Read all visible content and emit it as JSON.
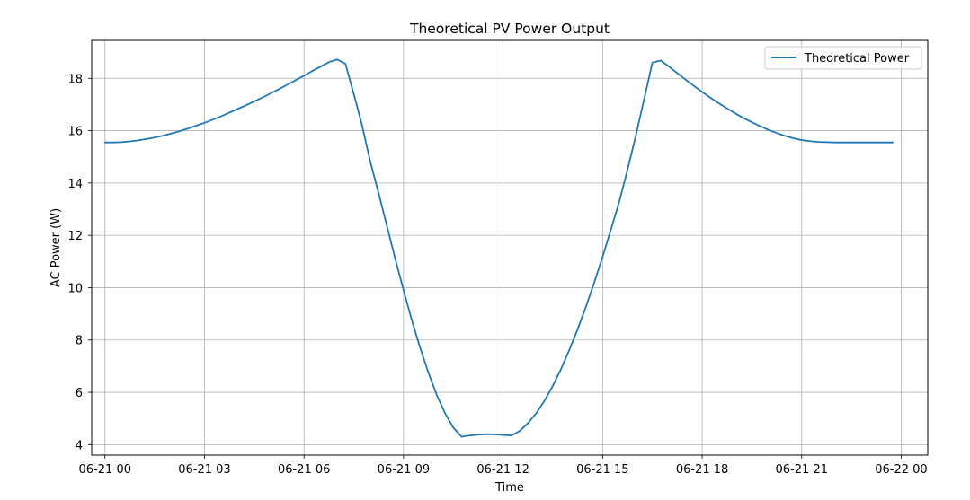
{
  "chart_data": {
    "type": "line",
    "title": "Theoretical PV Power Output",
    "xlabel": "Time",
    "ylabel": "AC Power (W)",
    "xlim_hours": [
      -0.4,
      24.8
    ],
    "ylim": [
      3.6,
      19.45
    ],
    "xticks": [
      {
        "hour": 0,
        "label": "06-21 00"
      },
      {
        "hour": 3,
        "label": "06-21 03"
      },
      {
        "hour": 6,
        "label": "06-21 06"
      },
      {
        "hour": 9,
        "label": "06-21 09"
      },
      {
        "hour": 12,
        "label": "06-21 12"
      },
      {
        "hour": 15,
        "label": "06-21 15"
      },
      {
        "hour": 18,
        "label": "06-21 18"
      },
      {
        "hour": 21,
        "label": "06-21 21"
      },
      {
        "hour": 24,
        "label": "06-22 00"
      }
    ],
    "yticks": [
      4,
      6,
      8,
      10,
      12,
      14,
      16,
      18
    ],
    "grid": true,
    "legend": {
      "position": "top-right",
      "entries": [
        "Theoretical Power"
      ]
    },
    "series": [
      {
        "name": "Theoretical Power",
        "color": "#1f77b4",
        "x_hours": [
          0,
          0.25,
          0.5,
          0.75,
          1,
          1.25,
          1.5,
          1.75,
          2,
          2.25,
          2.5,
          2.75,
          3,
          3.25,
          3.5,
          3.75,
          4,
          4.25,
          4.5,
          4.75,
          5,
          5.25,
          5.5,
          5.75,
          6,
          6.25,
          6.5,
          6.75,
          7,
          7.25,
          7.5,
          7.75,
          8,
          8.25,
          8.5,
          8.75,
          9,
          9.25,
          9.5,
          9.75,
          10,
          10.25,
          10.5,
          10.75,
          11,
          11.25,
          11.5,
          11.75,
          12,
          12.25,
          12.5,
          12.75,
          13,
          13.25,
          13.5,
          13.75,
          14,
          14.25,
          14.5,
          14.75,
          15,
          15.25,
          15.5,
          15.75,
          16,
          16.25,
          16.5,
          16.75,
          17,
          17.25,
          17.5,
          17.75,
          18,
          18.25,
          18.5,
          18.75,
          19,
          19.25,
          19.5,
          19.75,
          20,
          20.25,
          20.5,
          20.75,
          21,
          21.25,
          21.5,
          21.75,
          22,
          22.25,
          22.5,
          22.75,
          23,
          23.25,
          23.5,
          23.75
        ],
        "values": [
          15.55,
          15.55,
          15.56,
          15.59,
          15.63,
          15.68,
          15.74,
          15.81,
          15.89,
          15.98,
          16.08,
          16.19,
          16.3,
          16.42,
          16.55,
          16.69,
          16.83,
          16.97,
          17.12,
          17.27,
          17.43,
          17.59,
          17.76,
          17.93,
          18.1,
          18.28,
          18.45,
          18.62,
          18.72,
          18.55,
          17.4,
          16.2,
          14.8,
          13.6,
          12.35,
          11.1,
          9.9,
          8.75,
          7.7,
          6.75,
          5.9,
          5.2,
          4.65,
          4.3,
          4.35,
          4.38,
          4.4,
          4.39,
          4.37,
          4.35,
          4.52,
          4.82,
          5.2,
          5.68,
          6.25,
          6.9,
          7.63,
          8.42,
          9.28,
          10.2,
          11.18,
          12.22,
          13.28,
          14.5,
          15.8,
          17.2,
          18.6,
          18.68,
          18.45,
          18.2,
          17.95,
          17.71,
          17.48,
          17.26,
          17.05,
          16.85,
          16.66,
          16.48,
          16.32,
          16.17,
          16.03,
          15.91,
          15.8,
          15.71,
          15.64,
          15.6,
          15.57,
          15.56,
          15.55,
          15.55,
          15.55,
          15.55,
          15.55,
          15.55,
          15.55,
          15.55
        ]
      }
    ]
  }
}
